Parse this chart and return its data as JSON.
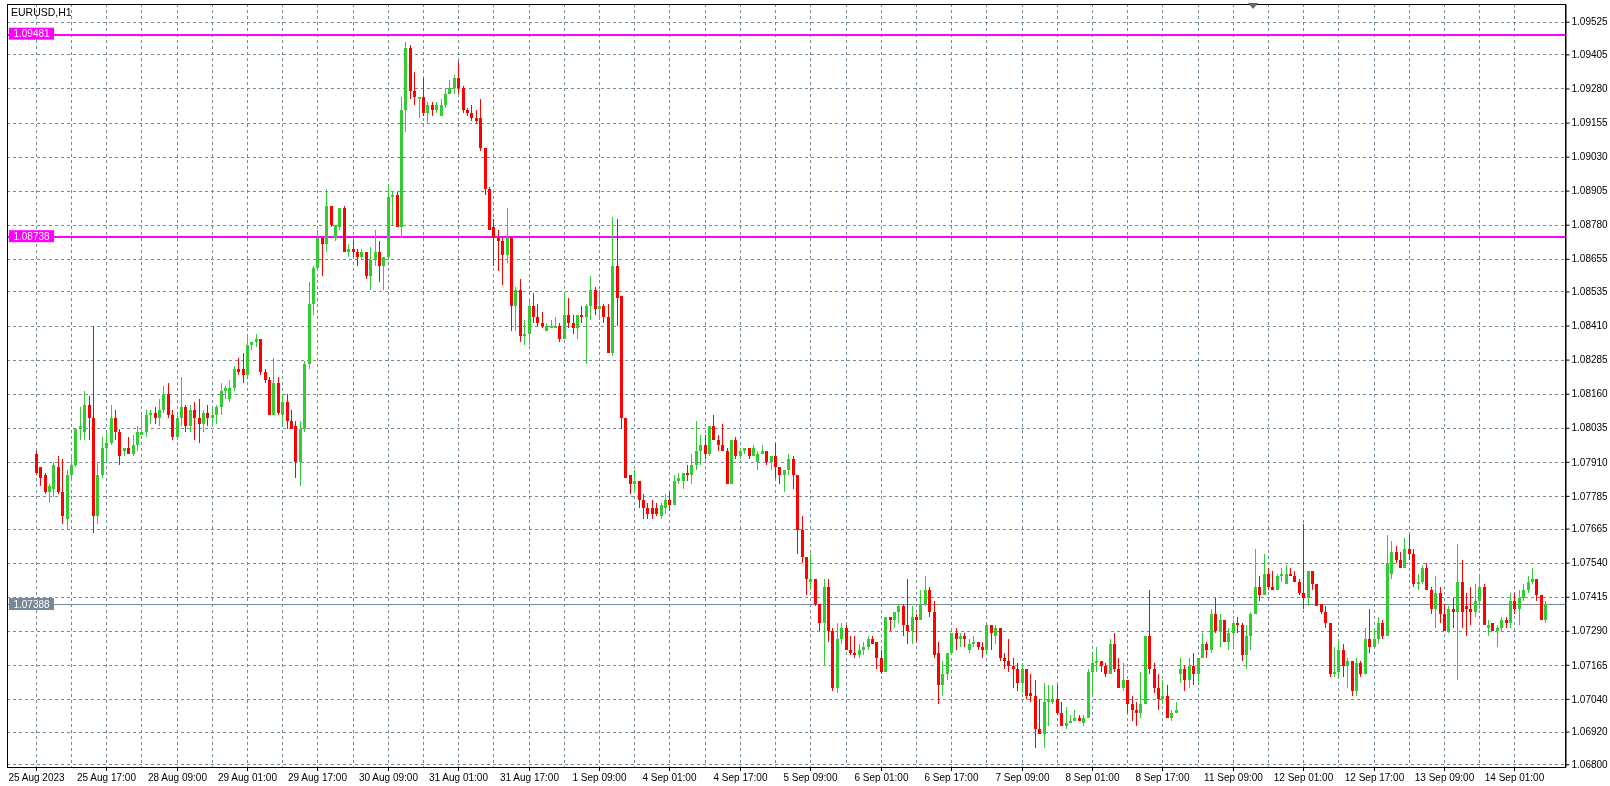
{
  "chart_data": {
    "type": "candlestick",
    "title": "EURUSD,H1",
    "categories": [
      "25 Aug 2023",
      null,
      null,
      null,
      null,
      null,
      null,
      null,
      null,
      null,
      null,
      null,
      null,
      null,
      null,
      null,
      "25 Aug 17:00",
      null,
      null,
      null,
      null,
      null,
      null,
      null,
      null,
      null,
      null,
      null,
      null,
      null,
      null,
      null,
      "28 Aug 09:00",
      null,
      null,
      null,
      null,
      null,
      null,
      null,
      null,
      null,
      null,
      null,
      null,
      null,
      null,
      null,
      "29 Aug 01:00",
      null,
      null,
      null,
      null,
      null,
      null,
      null,
      null,
      null,
      null,
      null,
      null,
      null,
      null,
      null,
      "29 Aug 17:00",
      null,
      null,
      null,
      null,
      null,
      null,
      null,
      null,
      null,
      null,
      null,
      null,
      null,
      null,
      null,
      "30 Aug 09:00",
      null,
      null,
      null,
      null,
      null,
      null,
      null,
      null,
      null,
      null,
      null,
      null,
      null,
      null,
      null,
      "31 Aug 01:00",
      null,
      null,
      null,
      null,
      null,
      null,
      null,
      null,
      null,
      null,
      null,
      null,
      null,
      null,
      null,
      "31 Aug 17:00",
      null,
      null,
      null,
      null,
      null,
      null,
      null,
      null,
      null,
      null,
      null,
      null,
      null,
      null,
      null,
      "1 Sep 09:00",
      null,
      null,
      null,
      null,
      null,
      null,
      null,
      null,
      null,
      null,
      null,
      null,
      null,
      null,
      null,
      "4 Sep 01:00",
      null,
      null,
      null,
      null,
      null,
      null,
      null,
      null,
      null,
      null,
      null,
      null,
      null,
      null,
      null,
      "4 Sep 17:00",
      null,
      null,
      null,
      null,
      null,
      null,
      null,
      null,
      null,
      null,
      null,
      null,
      null,
      null,
      null,
      "5 Sep 09:00",
      null,
      null,
      null,
      null,
      null,
      null,
      null,
      null,
      null,
      null,
      null,
      null,
      null,
      null,
      null,
      "6 Sep 01:00",
      null,
      null,
      null,
      null,
      null,
      null,
      null,
      null,
      null,
      null,
      null,
      null,
      null,
      null,
      null,
      "6 Sep 17:00",
      null,
      null,
      null,
      null,
      null,
      null,
      null,
      null,
      null,
      null,
      null,
      null,
      null,
      null,
      null,
      "7 Sep 09:00",
      null,
      null,
      null,
      null,
      null,
      null,
      null,
      null,
      null,
      null,
      null,
      null,
      null,
      null,
      null,
      "8 Sep 01:00",
      null,
      null,
      null,
      null,
      null,
      null,
      null,
      null,
      null,
      null,
      null,
      null,
      null,
      null,
      null,
      "8 Sep 17:00",
      null,
      null,
      null,
      null,
      null,
      null,
      null,
      null,
      null,
      null,
      null,
      null,
      null,
      null,
      null,
      "11 Sep 09:00",
      null,
      null,
      null,
      null,
      null,
      null,
      null,
      null,
      null,
      null,
      null,
      null,
      null,
      null,
      null,
      "12 Sep 01:00",
      null,
      null,
      null,
      null,
      null,
      null,
      null,
      null,
      null,
      null,
      null,
      null,
      null,
      null,
      null,
      "12 Sep 17:00",
      null,
      null,
      null,
      null,
      null,
      null,
      null,
      null,
      null,
      null,
      null,
      null,
      null,
      null,
      null,
      "13 Sep 09:00",
      null,
      null,
      null,
      null,
      null,
      null,
      null,
      null,
      null,
      null,
      null,
      null,
      null,
      null,
      null,
      "14 Sep 01:00",
      null,
      null,
      null,
      null,
      null,
      null,
      null
    ],
    "ohlc": [
      [
        1.0794,
        1.0795,
        1.0786,
        1.0787
      ],
      [
        1.0789,
        1.0789,
        1.0782,
        1.0785
      ],
      [
        1.0786,
        1.0787,
        1.0779,
        1.078
      ],
      [
        1.078,
        1.0783,
        1.0776,
        1.0782
      ],
      [
        1.0781,
        1.0791,
        1.0778,
        1.079
      ],
      [
        1.0789,
        1.0793,
        1.0779,
        1.078
      ],
      [
        1.078,
        1.0792,
        1.0768,
        1.0771
      ],
      [
        1.077,
        1.0788,
        1.0766,
        1.0786
      ],
      [
        1.0786,
        1.0794,
        1.0784,
        1.079
      ],
      [
        1.079,
        1.0803,
        1.0789,
        1.0803
      ],
      [
        1.0803,
        1.0811,
        1.0799,
        1.0804
      ],
      [
        1.0802,
        1.0817,
        1.0799,
        1.0812
      ],
      [
        1.0812,
        1.0815,
        1.0799,
        1.0807
      ],
      [
        1.0807,
        1.0841,
        1.0765,
        1.0771
      ],
      [
        1.0771,
        1.0791,
        1.0768,
        1.0786
      ],
      [
        1.0786,
        1.08,
        1.0785,
        1.0796
      ],
      [
        1.0796,
        1.0802,
        1.0791,
        1.0798
      ],
      [
        1.0798,
        1.0812,
        1.0797,
        1.0807
      ],
      [
        1.0807,
        1.081,
        1.0799,
        1.0802
      ],
      [
        1.0802,
        1.0803,
        1.079,
        1.0793
      ],
      [
        1.0795,
        1.0796,
        1.0793,
        1.0796
      ],
      [
        1.0796,
        1.08,
        1.0794,
        1.0794
      ],
      [
        1.0794,
        1.0801,
        1.0793,
        1.0797
      ],
      [
        1.0797,
        1.0804,
        1.0795,
        1.0802
      ],
      [
        1.0801,
        1.0809,
        1.0801,
        1.0802
      ],
      [
        1.0802,
        1.081,
        1.08,
        1.0808
      ],
      [
        1.0808,
        1.081,
        1.0805,
        1.0809
      ],
      [
        1.0809,
        1.0811,
        1.0805,
        1.0807
      ],
      [
        1.0807,
        1.0814,
        1.0804,
        1.081
      ],
      [
        1.081,
        1.0819,
        1.0809,
        1.0816
      ],
      [
        1.0816,
        1.082,
        1.0807,
        1.0808
      ],
      [
        1.0808,
        1.081,
        1.0799,
        1.08
      ],
      [
        1.08,
        1.0809,
        1.0799,
        1.0807
      ],
      [
        1.0807,
        1.0822,
        1.0804,
        1.0811
      ],
      [
        1.0811,
        1.0812,
        1.0802,
        1.0804
      ],
      [
        1.0804,
        1.0812,
        1.0802,
        1.081
      ],
      [
        1.081,
        1.0813,
        1.0799,
        1.0807
      ],
      [
        1.0807,
        1.0814,
        1.0798,
        1.0805
      ],
      [
        1.0805,
        1.081,
        1.0802,
        1.0809
      ],
      [
        1.0809,
        1.0812,
        1.0804,
        1.0807
      ],
      [
        1.0807,
        1.0811,
        1.0804,
        1.0808
      ],
      [
        1.0808,
        1.0812,
        1.0805,
        1.0811
      ],
      [
        1.0811,
        1.082,
        1.0808,
        1.0817
      ],
      [
        1.0817,
        1.0819,
        1.0814,
        1.0818
      ],
      [
        1.0814,
        1.0821,
        1.0813,
        1.0818
      ],
      [
        1.0818,
        1.0826,
        1.0817,
        1.0825
      ],
      [
        1.0825,
        1.0829,
        1.0823,
        1.0824
      ],
      [
        1.0825,
        1.0831,
        1.082,
        1.0823
      ],
      [
        1.0823,
        1.0837,
        1.0822,
        1.0834
      ],
      [
        1.0834,
        1.0835,
        1.0832,
        1.0835
      ],
      [
        1.0835,
        1.0838,
        1.0833,
        1.0836
      ],
      [
        1.0836,
        1.0836,
        1.0823,
        1.0824
      ],
      [
        1.0824,
        1.0825,
        1.082,
        1.0821
      ],
      [
        1.0821,
        1.0822,
        1.0808,
        1.0808
      ],
      [
        1.0808,
        1.0829,
        1.0808,
        1.082
      ],
      [
        1.082,
        1.0822,
        1.0808,
        1.0809
      ],
      [
        1.0808,
        1.0816,
        1.0804,
        1.0813
      ],
      [
        1.0813,
        1.0816,
        1.0803,
        1.0806
      ],
      [
        1.0806,
        1.081,
        1.0803,
        1.0803
      ],
      [
        1.0804,
        1.0806,
        1.0785,
        1.0791
      ],
      [
        1.0791,
        1.0806,
        1.0782,
        1.0803
      ],
      [
        1.0803,
        1.0828,
        1.0802,
        1.0827
      ],
      [
        1.0827,
        1.0857,
        1.0825,
        1.0849
      ],
      [
        1.0849,
        1.0863,
        1.0845,
        1.0862
      ],
      [
        1.0862,
        1.0876,
        1.0862,
        1.0873
      ],
      [
        1.0873,
        1.0873,
        1.0859,
        1.0871
      ],
      [
        1.0871,
        1.0891,
        1.0868,
        1.0885
      ],
      [
        1.0885,
        1.0885,
        1.0877,
        1.0878
      ],
      [
        1.0873,
        1.0878,
        1.0872,
        1.0878
      ],
      [
        1.0877,
        1.0884,
        1.0876,
        1.0884
      ],
      [
        1.0884,
        1.0885,
        1.0868,
        1.0868
      ],
      [
        1.0868,
        1.0871,
        1.0866,
        1.0869
      ],
      [
        1.0869,
        1.0872,
        1.0866,
        1.0868
      ],
      [
        1.0868,
        1.0869,
        1.0863,
        1.0866
      ],
      [
        1.0866,
        1.0869,
        1.0865,
        1.0868
      ],
      [
        1.0868,
        1.0868,
        1.0858,
        1.0859
      ],
      [
        1.0859,
        1.087,
        1.0854,
        1.0865
      ],
      [
        1.0865,
        1.0876,
        1.0863,
        1.0868
      ],
      [
        1.0868,
        1.0872,
        1.0857,
        1.0863
      ],
      [
        1.0863,
        1.0866,
        1.0854,
        1.0866
      ],
      [
        1.0866,
        1.0893,
        1.0865,
        1.0888
      ],
      [
        1.0888,
        1.089,
        1.0878,
        1.0889
      ],
      [
        1.0889,
        1.089,
        1.0877,
        1.0877
      ],
      [
        1.0877,
        1.0925,
        1.0873,
        1.092
      ],
      [
        1.092,
        1.0945,
        1.0912,
        1.0943
      ],
      [
        1.0943,
        1.0944,
        1.0924,
        1.0927
      ],
      [
        1.0927,
        1.0934,
        1.0922,
        1.0925
      ],
      [
        1.0924,
        1.0925,
        1.0917,
        1.0925
      ],
      [
        1.0925,
        1.0932,
        1.0918,
        1.0919
      ],
      [
        1.0919,
        1.0923,
        1.0915,
        1.0922
      ],
      [
        1.0922,
        1.0923,
        1.0918,
        1.092
      ],
      [
        1.092,
        1.0923,
        1.0919,
        1.0922
      ],
      [
        1.0918,
        1.0924,
        1.0918,
        1.0922
      ],
      [
        1.0922,
        1.0928,
        1.0921,
        1.0926
      ],
      [
        1.0926,
        1.0931,
        1.0926,
        1.0928
      ],
      [
        1.0928,
        1.0933,
        1.0926,
        1.0932
      ],
      [
        1.0932,
        1.0938,
        1.0926,
        1.0928
      ],
      [
        1.0928,
        1.0929,
        1.0919,
        1.092
      ],
      [
        1.092,
        1.0921,
        1.0918,
        1.0919
      ],
      [
        1.0919,
        1.0922,
        1.0916,
        1.0917
      ],
      [
        1.0917,
        1.092,
        1.0915,
        1.0916
      ],
      [
        1.0917,
        1.0924,
        1.0905,
        1.0906
      ],
      [
        1.0906,
        1.0906,
        1.0889,
        1.0891
      ],
      [
        1.0891,
        1.0892,
        1.0876,
        1.0876
      ],
      [
        1.0877,
        1.088,
        1.0863,
        1.0873
      ],
      [
        1.0873,
        1.0876,
        1.0861,
        1.0872
      ],
      [
        1.0872,
        1.0873,
        1.0856,
        1.0867
      ],
      [
        1.0867,
        1.0884,
        1.0864,
        1.0873
      ],
      [
        1.0873,
        1.0874,
        1.0839,
        1.0848
      ],
      [
        1.0848,
        1.0855,
        1.0839,
        1.0854
      ],
      [
        1.0854,
        1.0858,
        1.0835,
        1.0837
      ],
      [
        1.0837,
        1.0843,
        1.0834,
        1.0838
      ],
      [
        1.0838,
        1.0851,
        1.0834,
        1.0848
      ],
      [
        1.0848,
        1.0853,
        1.0842,
        1.0844
      ],
      [
        1.0844,
        1.0849,
        1.0841,
        1.0842
      ],
      [
        1.0842,
        1.0846,
        1.084,
        1.0841
      ],
      [
        1.0839,
        1.0842,
        1.0839,
        1.0841
      ],
      [
        1.084,
        1.0843,
        1.084,
        1.0841
      ],
      [
        1.084,
        1.0844,
        1.084,
        1.0841
      ],
      [
        1.0841,
        1.0842,
        1.0835,
        1.0836
      ],
      [
        1.0836,
        1.0853,
        1.0836,
        1.0845
      ],
      [
        1.0845,
        1.0851,
        1.084,
        1.0842
      ],
      [
        1.0842,
        1.0845,
        1.0838,
        1.084
      ],
      [
        1.084,
        1.0845,
        1.0836,
        1.0845
      ],
      [
        1.0845,
        1.0848,
        1.0842,
        1.0844
      ],
      [
        1.0844,
        1.0849,
        1.0827,
        1.0848
      ],
      [
        1.0848,
        1.0859,
        1.0843,
        1.0854
      ],
      [
        1.0854,
        1.0855,
        1.0845,
        1.0847
      ],
      [
        1.0847,
        1.0854,
        1.0843,
        1.0848
      ],
      [
        1.0848,
        1.0849,
        1.0842,
        1.0844
      ],
      [
        1.0844,
        1.0849,
        1.0831,
        1.0831
      ],
      [
        1.0831,
        1.0881,
        1.083,
        1.0863
      ],
      [
        1.0863,
        1.088,
        1.0841,
        1.0851
      ],
      [
        1.0852,
        1.0852,
        1.0803,
        1.0807
      ],
      [
        1.0807,
        1.0807,
        1.0785,
        1.0785
      ],
      [
        1.0786,
        1.0786,
        1.0779,
        1.0783
      ],
      [
        1.0783,
        1.0788,
        1.078,
        1.0784
      ],
      [
        1.0784,
        1.0784,
        1.0774,
        1.0777
      ],
      [
        1.0777,
        1.0779,
        1.077,
        1.0774
      ],
      [
        1.0774,
        1.0776,
        1.077,
        1.0772
      ],
      [
        1.0774,
        1.0777,
        1.077,
        1.0772
      ],
      [
        1.0774,
        1.0776,
        1.0771,
        1.0772
      ],
      [
        1.0771,
        1.0776,
        1.077,
        1.0775
      ],
      [
        1.0774,
        1.0779,
        1.0772,
        1.0777
      ],
      [
        1.0777,
        1.078,
        1.0773,
        1.0775
      ],
      [
        1.0775,
        1.0786,
        1.0775,
        1.0784
      ],
      [
        1.0784,
        1.0787,
        1.0783,
        1.0785
      ],
      [
        1.0784,
        1.0787,
        1.0781,
        1.0787
      ],
      [
        1.0787,
        1.079,
        1.0784,
        1.0786
      ],
      [
        1.0786,
        1.0794,
        1.0783,
        1.079
      ],
      [
        1.079,
        1.0806,
        1.0788,
        1.0795
      ],
      [
        1.0795,
        1.0801,
        1.079,
        1.0797
      ],
      [
        1.0797,
        1.0801,
        1.0792,
        1.0794
      ],
      [
        1.0794,
        1.0804,
        1.0793,
        1.0804
      ],
      [
        1.0804,
        1.0808,
        1.0799,
        1.0799
      ],
      [
        1.0799,
        1.0801,
        1.0795,
        1.0797
      ],
      [
        1.0797,
        1.0805,
        1.0795,
        1.0795
      ],
      [
        1.0795,
        1.0796,
        1.0783,
        1.0783
      ],
      [
        1.0783,
        1.0799,
        1.0783,
        1.0799
      ],
      [
        1.0799,
        1.08,
        1.0792,
        1.0793
      ],
      [
        1.0793,
        1.0796,
        1.0792,
        1.0795
      ],
      [
        1.0795,
        1.0796,
        1.0794,
        1.0796
      ],
      [
        1.0796,
        1.0796,
        1.0792,
        1.0793
      ],
      [
        1.0793,
        1.0797,
        1.0793,
        1.0796
      ],
      [
        1.0791,
        1.0795,
        1.0788,
        1.0794
      ],
      [
        1.0794,
        1.0797,
        1.0794,
        1.0795
      ],
      [
        1.0795,
        1.0795,
        1.079,
        1.0791
      ],
      [
        1.0791,
        1.0793,
        1.0788,
        1.0793
      ],
      [
        1.0793,
        1.0798,
        1.0785,
        1.0789
      ],
      [
        1.0789,
        1.0789,
        1.0783,
        1.0786
      ],
      [
        1.0786,
        1.0788,
        1.078,
        1.0788
      ],
      [
        1.0788,
        1.0794,
        1.0786,
        1.0792
      ],
      [
        1.0792,
        1.0793,
        1.0781,
        1.0786
      ],
      [
        1.0786,
        1.0786,
        1.0757,
        1.0766
      ],
      [
        1.0766,
        1.0771,
        1.0754,
        1.0756
      ],
      [
        1.0756,
        1.0756,
        1.0742,
        1.0748
      ],
      [
        1.0747,
        1.0757,
        1.0744,
        1.0748
      ],
      [
        1.0748,
        1.0748,
        1.0738,
        1.0739
      ],
      [
        1.0739,
        1.0739,
        1.0729,
        1.0732
      ],
      [
        1.0732,
        1.0748,
        1.0716,
        1.0745
      ],
      [
        1.0745,
        1.0748,
        1.0725,
        1.0729
      ],
      [
        1.0729,
        1.073,
        1.0707,
        1.0708
      ],
      [
        1.0708,
        1.0732,
        1.0706,
        1.0726
      ],
      [
        1.0726,
        1.0732,
        1.0724,
        1.073
      ],
      [
        1.073,
        1.0731,
        1.0722,
        1.0722
      ],
      [
        1.0722,
        1.0727,
        1.072,
        1.0721
      ],
      [
        1.0721,
        1.0727,
        1.0719,
        1.072
      ],
      [
        1.072,
        1.0724,
        1.0719,
        1.0722
      ],
      [
        1.0722,
        1.0725,
        1.072,
        1.0723
      ],
      [
        1.0723,
        1.0727,
        1.0722,
        1.0726
      ],
      [
        1.0726,
        1.0727,
        1.0724,
        1.0724
      ],
      [
        1.0725,
        1.0725,
        1.0715,
        1.0719
      ],
      [
        1.0719,
        1.0722,
        1.0713,
        1.0714
      ],
      [
        1.0714,
        1.0734,
        1.0714,
        1.0734
      ],
      [
        1.0734,
        1.0734,
        1.0729,
        1.0733
      ],
      [
        1.0733,
        1.0736,
        1.073,
        1.0736
      ],
      [
        1.0736,
        1.0739,
        1.0732,
        1.0738
      ],
      [
        1.0738,
        1.0739,
        1.0727,
        1.0731
      ],
      [
        1.0731,
        1.0748,
        1.0724,
        1.0729
      ],
      [
        1.0729,
        1.0738,
        1.0724,
        1.0734
      ],
      [
        1.0734,
        1.0735,
        1.0725,
        1.0733
      ],
      [
        1.0733,
        1.0744,
        1.0733,
        1.0739
      ],
      [
        1.0739,
        1.0749,
        1.0738,
        1.0744
      ],
      [
        1.0744,
        1.0745,
        1.0734,
        1.0736
      ],
      [
        1.0736,
        1.074,
        1.0719,
        1.072
      ],
      [
        1.0721,
        1.0725,
        1.0702,
        1.0709
      ],
      [
        1.0709,
        1.0718,
        1.0705,
        1.0713
      ],
      [
        1.0713,
        1.0721,
        1.0711,
        1.0721
      ],
      [
        1.0721,
        1.0728,
        1.072,
        1.0728
      ],
      [
        1.0728,
        1.073,
        1.0722,
        1.0726
      ],
      [
        1.0726,
        1.0728,
        1.0723,
        1.0727
      ],
      [
        1.0727,
        1.0728,
        1.0723,
        1.0726
      ],
      [
        1.0722,
        1.0726,
        1.0721,
        1.0724
      ],
      [
        1.0724,
        1.0727,
        1.0723,
        1.0725
      ],
      [
        1.0725,
        1.0725,
        1.0722,
        1.0723
      ],
      [
        1.0723,
        1.0725,
        1.0719,
        1.0722
      ],
      [
        1.0722,
        1.0731,
        1.072,
        1.0731
      ],
      [
        1.0731,
        1.0731,
        1.0722,
        1.0728
      ],
      [
        1.0727,
        1.0731,
        1.0724,
        1.073
      ],
      [
        1.073,
        1.073,
        1.0718,
        1.0719
      ],
      [
        1.0719,
        1.0721,
        1.0715,
        1.0718
      ],
      [
        1.0718,
        1.0726,
        1.0714,
        1.0716
      ],
      [
        1.0716,
        1.0719,
        1.0708,
        1.0715
      ],
      [
        1.0715,
        1.0717,
        1.0707,
        1.071
      ],
      [
        1.071,
        1.0717,
        1.0706,
        1.0715
      ],
      [
        1.0715,
        1.0715,
        1.0704,
        1.0705
      ],
      [
        1.0706,
        1.0713,
        1.0703,
        1.0705
      ],
      [
        1.0705,
        1.0711,
        1.0686,
        1.0693
      ],
      [
        1.0693,
        1.0704,
        1.0691,
        1.0691
      ],
      [
        1.0691,
        1.071,
        1.0686,
        1.0703
      ],
      [
        1.0703,
        1.0709,
        1.0694,
        1.0704
      ],
      [
        1.0703,
        1.0709,
        1.0702,
        1.0704
      ],
      [
        1.0704,
        1.0709,
        1.0698,
        1.0699
      ],
      [
        1.0699,
        1.0703,
        1.0694,
        1.0694
      ],
      [
        1.0694,
        1.0701,
        1.0693,
        1.0695
      ],
      [
        1.0695,
        1.0698,
        1.0695,
        1.0696
      ],
      [
        1.0696,
        1.07,
        1.0696,
        1.0697
      ],
      [
        1.0697,
        1.0698,
        1.0696,
        1.0696
      ],
      [
        1.0695,
        1.0698,
        1.0694,
        1.0697
      ],
      [
        1.0697,
        1.0715,
        1.0697,
        1.0714
      ],
      [
        1.0714,
        1.0721,
        1.0705,
        1.0717
      ],
      [
        1.0717,
        1.0723,
        1.0714,
        1.0718
      ],
      [
        1.0718,
        1.0718,
        1.0714,
        1.0716
      ],
      [
        1.0716,
        1.0717,
        1.0712,
        1.0713
      ],
      [
        1.0713,
        1.0726,
        1.0713,
        1.0724
      ],
      [
        1.0724,
        1.0728,
        1.0714,
        1.0715
      ],
      [
        1.0715,
        1.0719,
        1.0708,
        1.0708
      ],
      [
        1.0708,
        1.0717,
        1.0707,
        1.0711
      ],
      [
        1.0711,
        1.0711,
        1.0699,
        1.0702
      ],
      [
        1.0702,
        1.0705,
        1.0696,
        1.07
      ],
      [
        1.07,
        1.0703,
        1.0694,
        1.0699
      ],
      [
        1.0699,
        1.0714,
        1.0697,
        1.0702
      ],
      [
        1.0702,
        1.0727,
        1.0702,
        1.0727
      ],
      [
        1.0727,
        1.0744,
        1.0713,
        1.0715
      ],
      [
        1.0715,
        1.0717,
        1.0706,
        1.0708
      ],
      [
        1.0708,
        1.0713,
        1.07,
        1.0704
      ],
      [
        1.0704,
        1.0711,
        1.0702,
        1.0705
      ],
      [
        1.0705,
        1.0709,
        1.0697,
        1.0697
      ],
      [
        1.0697,
        1.07,
        1.0696,
        1.0699
      ],
      [
        1.0699,
        1.0703,
        1.0699,
        1.07
      ],
      [
        1.0713,
        1.0719,
        1.071,
        1.0715
      ],
      [
        1.0715,
        1.0716,
        1.0707,
        1.0711
      ],
      [
        1.0711,
        1.0719,
        1.0708,
        1.0716
      ],
      [
        1.0716,
        1.0721,
        1.0709,
        1.0713
      ],
      [
        1.0713,
        1.0719,
        1.071,
        1.0719
      ],
      [
        1.0719,
        1.0728,
        1.0719,
        1.0724
      ],
      [
        1.0724,
        1.0725,
        1.0719,
        1.0722
      ],
      [
        1.0722,
        1.0737,
        1.0721,
        1.0735
      ],
      [
        1.0735,
        1.0741,
        1.0728,
        1.0729
      ],
      [
        1.0729,
        1.0735,
        1.0723,
        1.0733
      ],
      [
        1.0733,
        1.0733,
        1.0725,
        1.0725
      ],
      [
        1.0725,
        1.073,
        1.0722,
        1.0728
      ],
      [
        1.0728,
        1.0733,
        1.0723,
        1.0732
      ],
      [
        1.0732,
        1.0734,
        1.0728,
        1.0731
      ],
      [
        1.0731,
        1.0732,
        1.0718,
        1.072
      ],
      [
        1.072,
        1.0731,
        1.0715,
        1.0727
      ],
      [
        1.0727,
        1.0736,
        1.0722,
        1.0735
      ],
      [
        1.0735,
        1.0759,
        1.0735,
        1.0745
      ],
      [
        1.0745,
        1.0749,
        1.074,
        1.0742
      ],
      [
        1.0742,
        1.0757,
        1.0742,
        1.075
      ],
      [
        1.075,
        1.0752,
        1.0744,
        1.0745
      ],
      [
        1.0745,
        1.0751,
        1.0744,
        1.0744
      ],
      [
        1.0744,
        1.075,
        1.0744,
        1.0749
      ],
      [
        1.0749,
        1.0752,
        1.0747,
        1.075
      ],
      [
        1.0746,
        1.0753,
        1.0746,
        1.075
      ],
      [
        1.075,
        1.0752,
        1.0749,
        1.0749
      ],
      [
        1.0749,
        1.0751,
        1.0747,
        1.0747
      ],
      [
        1.0747,
        1.0748,
        1.0742,
        1.0743
      ],
      [
        1.0743,
        1.0768,
        1.0737,
        1.0741
      ],
      [
        1.0741,
        1.0751,
        1.0738,
        1.0751
      ],
      [
        1.0751,
        1.0751,
        1.0744,
        1.0746
      ],
      [
        1.0746,
        1.0746,
        1.0738,
        1.0738
      ],
      [
        1.0739,
        1.0739,
        1.0735,
        1.0736
      ],
      [
        1.0736,
        1.0738,
        1.073,
        1.0732
      ],
      [
        1.0732,
        1.0732,
        1.0712,
        1.0713
      ],
      [
        1.0713,
        1.0723,
        1.0712,
        1.0714
      ],
      [
        1.0714,
        1.0726,
        1.0712,
        1.0722
      ],
      [
        1.0722,
        1.0724,
        1.0712,
        1.0716
      ],
      [
        1.0716,
        1.0719,
        1.0708,
        1.0718
      ],
      [
        1.0718,
        1.0718,
        1.0705,
        1.0707
      ],
      [
        1.0707,
        1.0719,
        1.0705,
        1.0717
      ],
      [
        1.0717,
        1.0718,
        1.0712,
        1.0713
      ],
      [
        1.0713,
        1.073,
        1.0713,
        1.0726
      ],
      [
        1.0726,
        1.0737,
        1.0721,
        1.0723
      ],
      [
        1.0723,
        1.073,
        1.0723,
        1.0726
      ],
      [
        1.0726,
        1.0734,
        1.0724,
        1.0732
      ],
      [
        1.0732,
        1.0733,
        1.0726,
        1.0727
      ],
      [
        1.0727,
        1.0764,
        1.0727,
        1.0754
      ],
      [
        1.075,
        1.0762,
        1.0748,
        1.0758
      ],
      [
        1.0758,
        1.076,
        1.0754,
        1.0755
      ],
      [
        1.0755,
        1.0758,
        1.0752,
        1.0752
      ],
      [
        1.0752,
        1.0763,
        1.0752,
        1.0759
      ],
      [
        1.0759,
        1.0764,
        1.0755,
        1.0757
      ],
      [
        1.0757,
        1.0759,
        1.0745,
        1.0746
      ],
      [
        1.0746,
        1.075,
        1.0744,
        1.0747
      ],
      [
        1.0747,
        1.0753,
        1.0746,
        1.0752
      ],
      [
        1.0752,
        1.0754,
        1.0744,
        1.0744
      ],
      [
        1.0744,
        1.0745,
        1.0735,
        1.0737
      ],
      [
        1.0737,
        1.0749,
        1.073,
        1.0743
      ],
      [
        1.0743,
        1.0745,
        1.0732,
        1.0735
      ],
      [
        1.0735,
        1.0739,
        1.0729,
        1.0729
      ],
      [
        1.0729,
        1.0738,
        1.0728,
        1.0737
      ],
      [
        1.0737,
        1.0741,
        1.073,
        1.0736
      ],
      [
        1.0736,
        1.0761,
        1.0711,
        1.0747
      ],
      [
        1.0747,
        1.0755,
        1.073,
        1.0736
      ],
      [
        1.0738,
        1.0743,
        1.0727,
        1.0737
      ],
      [
        1.0737,
        1.0745,
        1.0731,
        1.0736
      ],
      [
        1.0736,
        1.0746,
        1.0734,
        1.074
      ],
      [
        1.074,
        1.0749,
        1.0737,
        1.0745
      ],
      [
        1.0745,
        1.0746,
        1.0731,
        1.0731
      ],
      [
        1.073,
        1.0733,
        1.0727,
        1.0731
      ],
      [
        1.0732,
        1.0732,
        1.0729,
        1.0729
      ],
      [
        1.0729,
        1.0731,
        1.0723,
        1.073
      ],
      [
        1.073,
        1.0734,
        1.0729,
        1.0733
      ],
      [
        1.0733,
        1.0734,
        1.073,
        1.0732
      ],
      [
        1.0732,
        1.0743,
        1.073,
        1.074
      ],
      [
        1.074,
        1.0743,
        1.0735,
        1.0737
      ],
      [
        1.0737,
        1.0744,
        1.0731,
        1.0741
      ],
      [
        1.0741,
        1.0746,
        1.074,
        1.0744
      ],
      [
        1.0744,
        1.0749,
        1.0743,
        1.0747
      ],
      [
        1.0747,
        1.0752,
        1.0746,
        1.0748
      ],
      [
        1.0748,
        1.0748,
        1.074,
        1.0742
      ],
      [
        1.0742,
        1.0742,
        1.0733,
        1.0733
      ],
      [
        1.0733,
        1.074,
        1.0732,
        1.0739
      ]
    ],
    "colors": [
      "#ff0000",
      "#ff0000",
      "#ff0000",
      "#32cd32",
      "#32cd32",
      "#ff0000",
      "#ff0000",
      "#32cd32",
      "#32cd32",
      "#32cd32",
      "#32cd32",
      "#32cd32",
      "#ff0000",
      "#ff0000",
      "#32cd32",
      "#32cd32",
      "#32cd32",
      "#32cd32",
      "#ff0000",
      "#ff0000",
      "#32cd32",
      "#ff0000",
      "#32cd32",
      "#32cd32",
      "#32cd32",
      "#32cd32",
      "#32cd32",
      "#ff0000",
      "#32cd32",
      "#32cd32",
      "#ff0000",
      "#ff0000",
      "#32cd32",
      "#32cd32",
      "#ff0000",
      "#32cd32",
      "#ff0000",
      "#ff0000",
      "#32cd32",
      "#ff0000",
      "#32cd32",
      "#32cd32",
      "#32cd32",
      "#32cd32",
      "#32cd32",
      "#32cd32",
      "#ff0000",
      "#ff0000",
      "#32cd32",
      "#32cd32",
      "#32cd32",
      "#ff0000",
      "#ff0000",
      "#ff0000",
      "#32cd32",
      "#ff0000",
      "#32cd32",
      "#ff0000",
      "#ff0000",
      "#ff0000",
      "#32cd32",
      "#32cd32",
      "#32cd32",
      "#32cd32",
      "#32cd32",
      "#ff0000",
      "#32cd32",
      "#ff0000",
      "#32cd32",
      "#32cd32",
      "#ff0000",
      "#32cd32",
      "#ff0000",
      "#ff0000",
      "#32cd32",
      "#ff0000",
      "#32cd32",
      "#32cd32",
      "#ff0000",
      "#32cd32",
      "#32cd32",
      "#32cd32",
      "#ff0000",
      "#32cd32",
      "#32cd32",
      "#ff0000",
      "#ff0000",
      "#32cd32",
      "#ff0000",
      "#32cd32",
      "#ff0000",
      "#32cd32",
      "#32cd32",
      "#32cd32",
      "#32cd32",
      "#32cd32",
      "#ff0000",
      "#ff0000",
      "#ff0000",
      "#ff0000",
      "#ff0000",
      "#ff0000",
      "#ff0000",
      "#ff0000",
      "#ff0000",
      "#ff0000",
      "#ff0000",
      "#32cd32",
      "#ff0000",
      "#32cd32",
      "#ff0000",
      "#32cd32",
      "#32cd32",
      "#ff0000",
      "#ff0000",
      "#ff0000",
      "#32cd32",
      "#32cd32",
      "#32cd32",
      "#ff0000",
      "#32cd32",
      "#ff0000",
      "#ff0000",
      "#32cd32",
      "#ff0000",
      "#32cd32",
      "#32cd32",
      "#ff0000",
      "#32cd32",
      "#ff0000",
      "#ff0000",
      "#32cd32",
      "#ff0000",
      "#ff0000",
      "#ff0000",
      "#ff0000",
      "#32cd32",
      "#ff0000",
      "#ff0000",
      "#ff0000",
      "#ff0000",
      "#ff0000",
      "#32cd32",
      "#32cd32",
      "#ff0000",
      "#32cd32",
      "#32cd32",
      "#32cd32",
      "#ff0000",
      "#32cd32",
      "#32cd32",
      "#32cd32",
      "#ff0000",
      "#32cd32",
      "#ff0000",
      "#ff0000",
      "#ff0000",
      "#ff0000",
      "#32cd32",
      "#ff0000",
      "#32cd32",
      "#32cd32",
      "#ff0000",
      "#32cd32",
      "#32cd32",
      "#32cd32",
      "#ff0000",
      "#32cd32",
      "#ff0000",
      "#ff0000",
      "#32cd32",
      "#32cd32",
      "#ff0000",
      "#ff0000",
      "#ff0000",
      "#ff0000",
      "#32cd32",
      "#ff0000",
      "#ff0000",
      "#32cd32",
      "#ff0000",
      "#ff0000",
      "#32cd32",
      "#32cd32",
      "#ff0000",
      "#ff0000",
      "#ff0000",
      "#32cd32",
      "#32cd32",
      "#32cd32",
      "#ff0000",
      "#ff0000",
      "#ff0000",
      "#32cd32",
      "#ff0000",
      "#32cd32",
      "#32cd32",
      "#ff0000",
      "#ff0000",
      "#32cd32",
      "#ff0000",
      "#32cd32",
      "#32cd32",
      "#ff0000",
      "#ff0000",
      "#ff0000",
      "#32cd32",
      "#32cd32",
      "#32cd32",
      "#ff0000",
      "#32cd32",
      "#ff0000",
      "#32cd32",
      "#32cd32",
      "#ff0000",
      "#ff0000",
      "#32cd32",
      "#ff0000",
      "#32cd32",
      "#ff0000",
      "#ff0000",
      "#ff0000",
      "#ff0000",
      "#ff0000",
      "#32cd32",
      "#ff0000",
      "#ff0000",
      "#ff0000",
      "#ff0000",
      "#32cd32",
      "#32cd32",
      "#32cd32",
      "#ff0000",
      "#ff0000",
      "#32cd32",
      "#32cd32",
      "#32cd32",
      "#ff0000",
      "#32cd32",
      "#32cd32",
      "#32cd32",
      "#32cd32",
      "#ff0000",
      "#ff0000",
      "#32cd32",
      "#ff0000",
      "#ff0000",
      "#32cd32",
      "#ff0000",
      "#ff0000",
      "#ff0000",
      "#32cd32",
      "#32cd32",
      "#ff0000",
      "#ff0000",
      "#ff0000",
      "#32cd32",
      "#ff0000",
      "#32cd32",
      "#32cd32",
      "#32cd32",
      "#ff0000",
      "#32cd32",
      "#ff0000",
      "#32cd32",
      "#32cd32",
      "#ff0000",
      "#32cd32",
      "#ff0000",
      "#32cd32",
      "#ff0000",
      "#32cd32",
      "#32cd32",
      "#ff0000",
      "#ff0000",
      "#32cd32",
      "#32cd32",
      "#32cd32",
      "#ff0000",
      "#32cd32",
      "#ff0000",
      "#ff0000",
      "#32cd32",
      "#32cd32",
      "#32cd32",
      "#ff0000",
      "#ff0000",
      "#ff0000",
      "#ff0000",
      "#32cd32",
      "#ff0000",
      "#ff0000",
      "#ff0000",
      "#ff0000",
      "#ff0000",
      "#32cd32",
      "#32cd32",
      "#ff0000",
      "#32cd32",
      "#ff0000",
      "#32cd32",
      "#ff0000",
      "#32cd32",
      "#ff0000",
      "#32cd32",
      "#32cd32",
      "#ff0000",
      "#32cd32",
      "#32cd32",
      "#ff0000",
      "#ff0000",
      "#32cd32",
      "#ff0000",
      "#ff0000",
      "#32cd32",
      "#32cd32",
      "#ff0000",
      "#ff0000",
      "#32cd32",
      "#ff0000",
      "#ff0000",
      "#32cd32",
      "#ff0000",
      "#32cd32",
      "#ff0000",
      "#ff0000",
      "#ff0000",
      "#32cd32",
      "#32cd32",
      "#ff0000",
      "#32cd32",
      "#ff0000",
      "#32cd32",
      "#32cd32",
      "#ff0000",
      "#32cd32",
      "#ff0000",
      "#32cd32",
      "#32cd32",
      "#32cd32",
      "#32cd32",
      "#ff0000",
      "#ff0000",
      "#32cd32"
    ],
    "ylim": [
      1.0679,
      1.0959
    ],
    "yticks": [
      {
        "value": 1.068,
        "label": "1.06800"
      },
      {
        "value": 1.0692,
        "label": "1.06920"
      },
      {
        "value": 1.0704,
        "label": "1.07040"
      },
      {
        "value": 1.07165,
        "label": "1.07165"
      },
      {
        "value": 1.0729,
        "label": "1.07290"
      },
      {
        "value": 1.07415,
        "label": "1.07415"
      },
      {
        "value": 1.0754,
        "label": "1.07540"
      },
      {
        "value": 1.07665,
        "label": "1.07665"
      },
      {
        "value": 1.07785,
        "label": "1.07785"
      },
      {
        "value": 1.0791,
        "label": "1.07910"
      },
      {
        "value": 1.08035,
        "label": "1.08035"
      },
      {
        "value": 1.0816,
        "label": "1.08160"
      },
      {
        "value": 1.08285,
        "label": "1.08285"
      },
      {
        "value": 1.0841,
        "label": "1.08410"
      },
      {
        "value": 1.08535,
        "label": "1.08535"
      },
      {
        "value": 1.08655,
        "label": "1.08655"
      },
      {
        "value": 1.0878,
        "label": "1.08780"
      },
      {
        "value": 1.08905,
        "label": "1.08905"
      },
      {
        "value": 1.0903,
        "label": "1.09030"
      },
      {
        "value": 1.09155,
        "label": "1.09155"
      },
      {
        "value": 1.0928,
        "label": "1.09280"
      },
      {
        "value": 1.09405,
        "label": "1.09405"
      },
      {
        "value": 1.09525,
        "label": "1.09525"
      }
    ],
    "grid": true,
    "ref_lines": [
      {
        "axis": "y",
        "value": 1.09481,
        "label": "1.09481",
        "color": "#ff00ff"
      },
      {
        "axis": "y",
        "value": 1.08738,
        "label": "1.08738",
        "color": "#ff00ff"
      },
      {
        "axis": "y",
        "value": 1.07388,
        "label": "1.07388",
        "color": "#778899"
      }
    ]
  }
}
